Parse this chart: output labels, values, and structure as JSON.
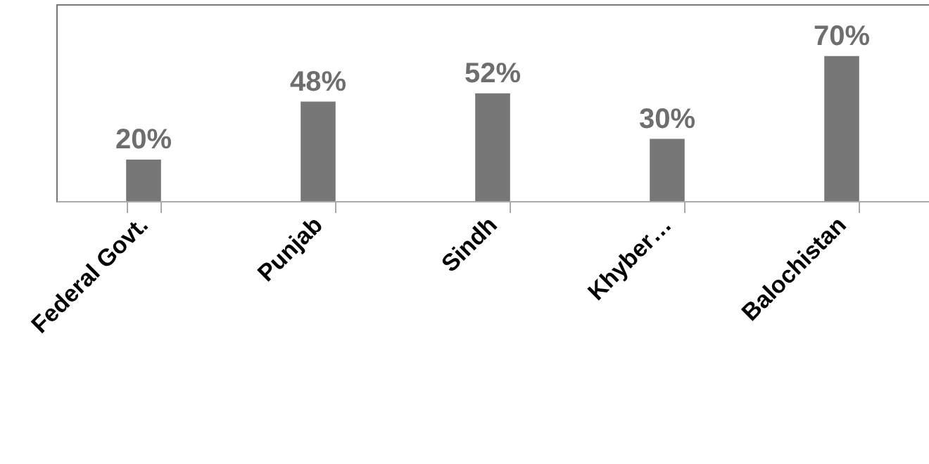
{
  "chart_data": {
    "type": "bar",
    "categories": [
      "Federal Govt.",
      "Punjab",
      "Sindh",
      "Khyber…",
      "Balochistan"
    ],
    "values": [
      20,
      48,
      52,
      30,
      70
    ],
    "value_labels": [
      "20%",
      "48%",
      "52%",
      "30%",
      "70%"
    ],
    "color": "#777777",
    "ylim": [
      0,
      95
    ],
    "tick_labels": "x"
  }
}
